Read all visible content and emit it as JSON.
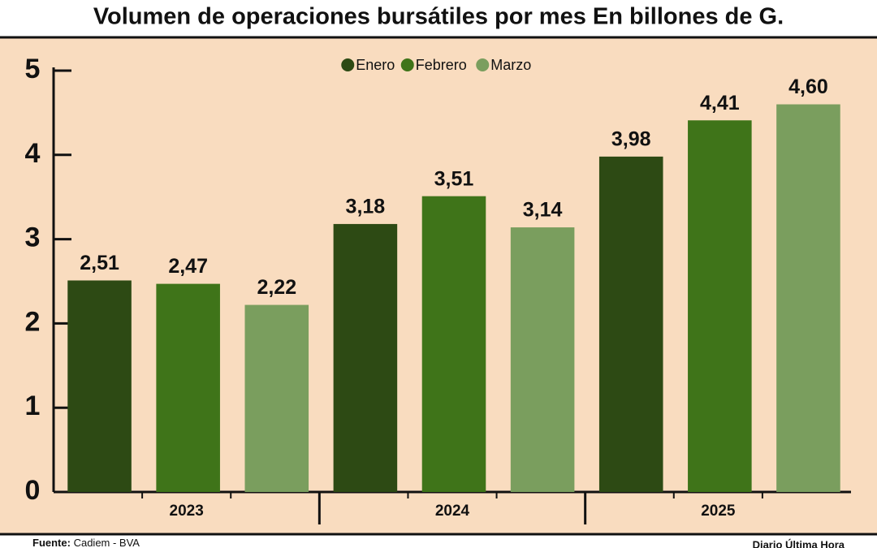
{
  "chart_data": {
    "type": "bar",
    "title": "Volumen de operaciones bursátiles por mes En billones de G.",
    "categories": [
      "2023",
      "2024",
      "2025"
    ],
    "series": [
      {
        "name": "Enero",
        "color": "#2d4a14",
        "values": [
          2.51,
          3.18,
          3.98
        ],
        "value_labels": [
          "2,51",
          "3,18",
          "3,98"
        ]
      },
      {
        "name": "Febrero",
        "color": "#3f7419",
        "values": [
          2.47,
          3.51,
          4.41
        ],
        "value_labels": [
          "2,47",
          "3,51",
          "4,41"
        ]
      },
      {
        "name": "Marzo",
        "color": "#7a9e5e",
        "values": [
          2.22,
          3.14,
          4.6
        ],
        "value_labels": [
          "2,22",
          "3,14",
          "4,60"
        ]
      }
    ],
    "ylim": [
      0,
      5
    ],
    "yticks": [
      0,
      1,
      2,
      3,
      4,
      5
    ],
    "legend": "top",
    "source_label": "Fuente:",
    "source": "Cadiem - BVA",
    "credit": "Diario Última Hora"
  }
}
